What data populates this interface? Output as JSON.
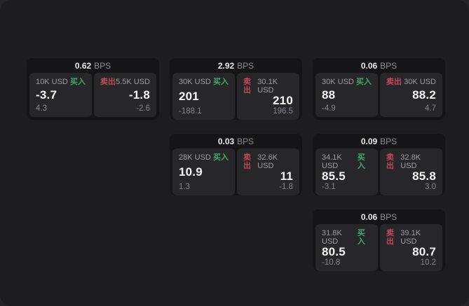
{
  "labels": {
    "bps_suffix": "BPS",
    "buy": "买入",
    "sell": "卖出"
  },
  "colors": {
    "outer_background": "#252527",
    "panel_background": "#1d1d1f",
    "card_background": "#151517",
    "tile_background": "#27272a",
    "buy_accent": "#41a968",
    "sell_accent": "#c04a59",
    "main_text": "#f5f5f5",
    "muted_text": "#9e9ea3"
  },
  "cards": [
    {
      "bps": "0.62",
      "buy": {
        "amount": "10K USD",
        "main": "-3.7",
        "sub": "4.3"
      },
      "sell": {
        "amount": "5.5K USD",
        "main": "-1.8",
        "sub": "-2.6"
      }
    },
    {
      "bps": "2.92",
      "buy": {
        "amount": "30K USD",
        "main": "201",
        "sub": "-188.1"
      },
      "sell": {
        "amount": "30.1K USD",
        "main": "210",
        "sub": "196.5"
      }
    },
    {
      "bps": "0.06",
      "buy": {
        "amount": "30K USD",
        "main": "88",
        "sub": "-4.9"
      },
      "sell": {
        "amount": "30K USD",
        "main": "88.2",
        "sub": "4.7"
      }
    },
    {
      "bps": "0.03",
      "buy": {
        "amount": "28K USD",
        "main": "10.9",
        "sub": "1.3"
      },
      "sell": {
        "amount": "32.6K USD",
        "main": "11",
        "sub": "-1.8"
      }
    },
    {
      "bps": "0.09",
      "buy": {
        "amount": "34.1K USD",
        "main": "85.5",
        "sub": "-3.1"
      },
      "sell": {
        "amount": "32.8K USD",
        "main": "85.8",
        "sub": "3.0"
      }
    },
    {
      "bps": "0.06",
      "buy": {
        "amount": "31.8K USD",
        "main": "80.5",
        "sub": "-10.8"
      },
      "sell": {
        "amount": "39.1K USD",
        "main": "80.7",
        "sub": "10.2"
      }
    }
  ]
}
